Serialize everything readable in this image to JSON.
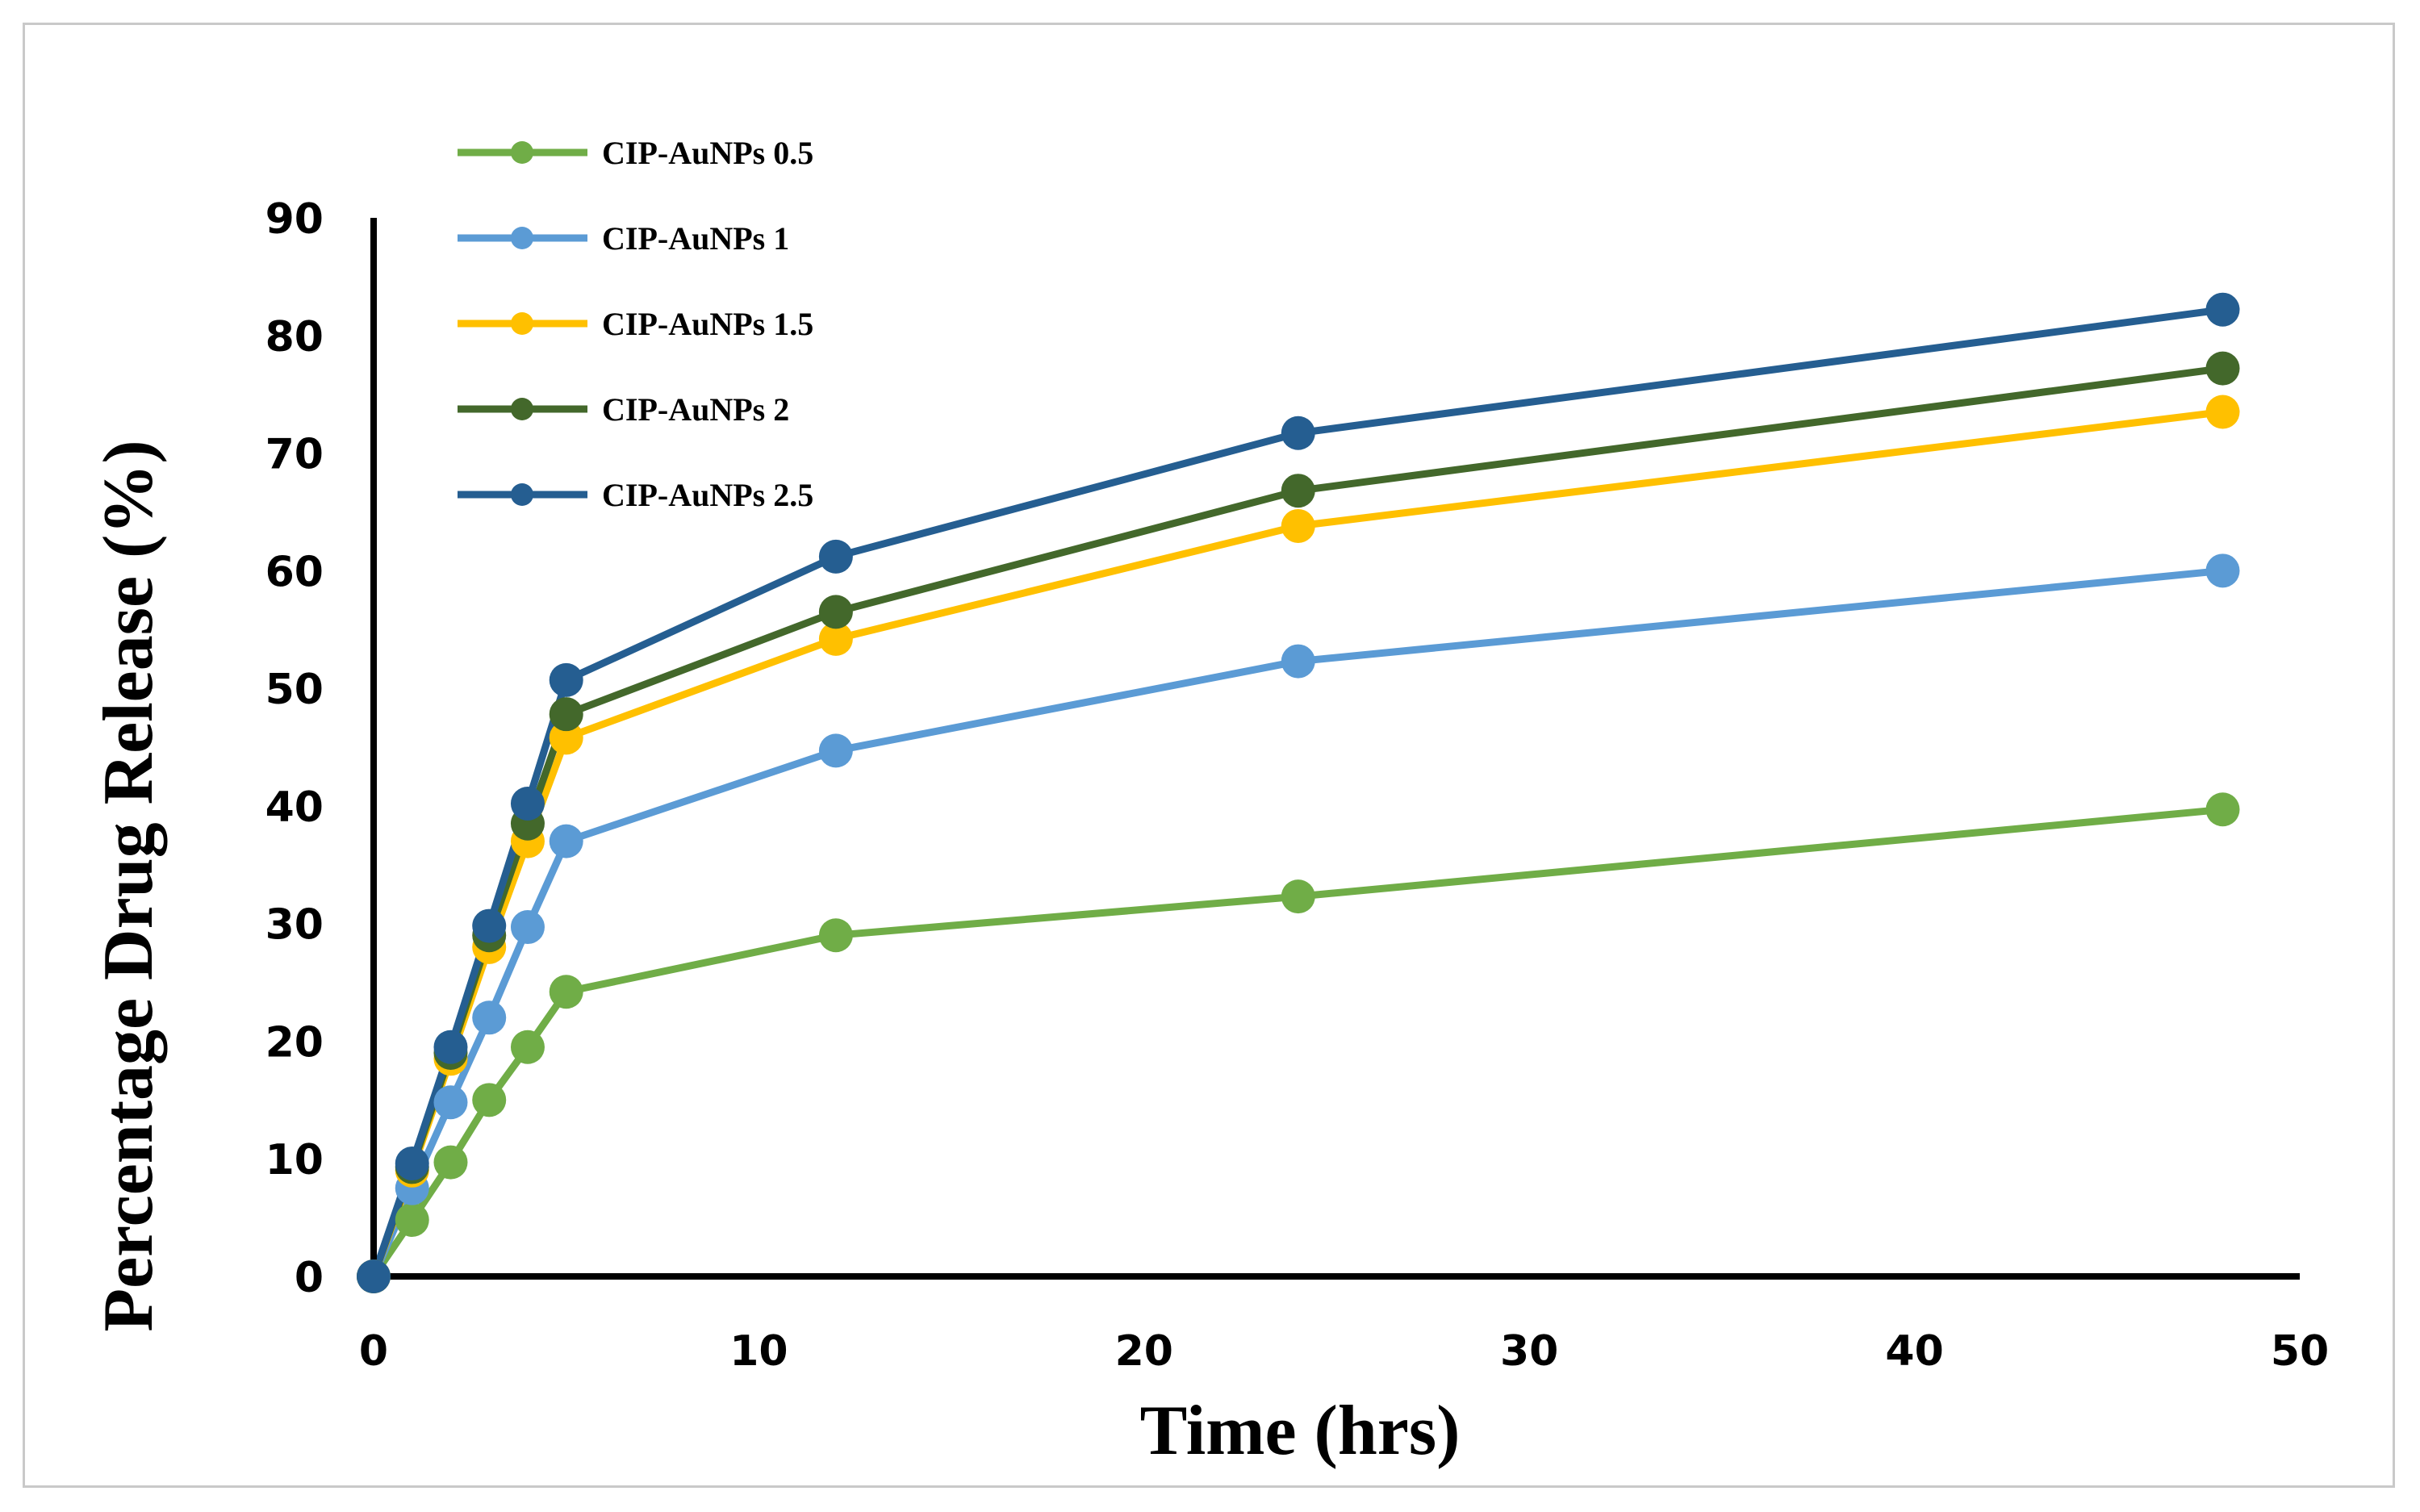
{
  "chart_data": {
    "type": "line",
    "title": "",
    "xlabel": "Time (hrs)",
    "ylabel": "Percentage Drug Release (%)",
    "xlim": [
      0,
      50
    ],
    "ylim": [
      0,
      90
    ],
    "xticks": [
      0,
      10,
      20,
      30,
      40,
      50
    ],
    "yticks": [
      0,
      10,
      20,
      30,
      40,
      50,
      60,
      70,
      80,
      90
    ],
    "grid": false,
    "legend_position": "top-left",
    "x": [
      0,
      1,
      2,
      3,
      4,
      5,
      12,
      24,
      48
    ],
    "series": [
      {
        "name": "CIP-AuNPs 0.5",
        "color": "#70ad47",
        "values": [
          0,
          4.8,
          9.7,
          15.0,
          19.5,
          24.2,
          29.0,
          32.3,
          39.7
        ]
      },
      {
        "name": "CIP-AuNPs 1",
        "color": "#5b9bd5",
        "values": [
          0,
          7.5,
          14.8,
          22.0,
          29.7,
          37.0,
          44.7,
          52.3,
          60.0
        ]
      },
      {
        "name": "CIP-AuNPs 1.5",
        "color": "#ffc000",
        "values": [
          0,
          9.0,
          18.5,
          28.0,
          37.0,
          45.8,
          54.2,
          63.8,
          73.5
        ]
      },
      {
        "name": "CIP-AuNPs 2",
        "color": "#43682b",
        "values": [
          0,
          9.3,
          19.0,
          29.0,
          38.5,
          47.8,
          56.5,
          66.8,
          77.2
        ]
      },
      {
        "name": "CIP-AuNPs 2.5",
        "color": "#255e91",
        "values": [
          0,
          9.6,
          19.5,
          29.8,
          40.2,
          50.7,
          61.2,
          71.7,
          82.2
        ]
      }
    ]
  }
}
